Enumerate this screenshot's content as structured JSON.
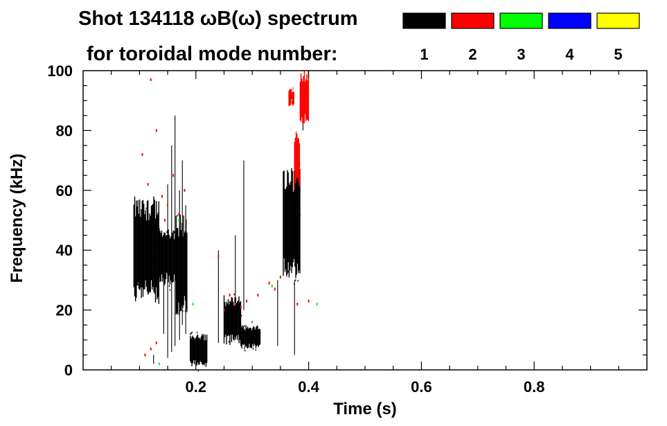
{
  "chart_data": {
    "type": "heatmap",
    "title_line1": "Shot 134118 ωB(ω) spectrum",
    "title_line2": "for toroidal mode number:",
    "xlabel": "Time (s)",
    "ylabel": "Frequency (kHz)",
    "xlim": [
      0.0,
      1.0
    ],
    "ylim": [
      0,
      100
    ],
    "x_ticks": [
      0.2,
      0.4,
      0.6,
      0.8
    ],
    "x_tick_labels": [
      "0.2",
      "0.4",
      "0.6",
      "0.8"
    ],
    "y_ticks": [
      0,
      20,
      40,
      60,
      80,
      100
    ],
    "y_tick_labels": [
      "0",
      "20",
      "40",
      "60",
      "80",
      "100"
    ],
    "legend_placement": "top-right",
    "legend": [
      {
        "label": "1",
        "color": "#000000"
      },
      {
        "label": "2",
        "color": "#ff0000"
      },
      {
        "label": "3",
        "color": "#00ff00"
      },
      {
        "label": "4",
        "color": "#0000ff"
      },
      {
        "label": "5",
        "color": "#ffff00"
      }
    ],
    "series": [
      {
        "name": "1",
        "color": "#000000",
        "regions": [
          {
            "t": [
              0.09,
              0.135
            ],
            "f": [
              22,
              58
            ]
          },
          {
            "t": [
              0.135,
              0.165
            ],
            "f": [
              28,
              48
            ]
          },
          {
            "t": [
              0.165,
              0.185
            ],
            "f": [
              18,
              52
            ]
          },
          {
            "t": [
              0.19,
              0.22
            ],
            "f": [
              1,
              12
            ]
          },
          {
            "t": [
              0.25,
              0.28
            ],
            "f": [
              8,
              25
            ]
          },
          {
            "t": [
              0.28,
              0.315
            ],
            "f": [
              7,
              15
            ]
          },
          {
            "t": [
              0.355,
              0.385
            ],
            "f": [
              30,
              68
            ]
          }
        ],
        "streaks": [
          {
            "t": 0.125,
            "f": [
              2,
              5
            ]
          },
          {
            "t": 0.143,
            "f": [
              12,
              45
            ]
          },
          {
            "t": 0.15,
            "f": [
              4,
              62
            ]
          },
          {
            "t": 0.157,
            "f": [
              6,
              75
            ]
          },
          {
            "t": 0.163,
            "f": [
              8,
              85
            ]
          },
          {
            "t": 0.171,
            "f": [
              10,
              60
            ]
          },
          {
            "t": 0.176,
            "f": [
              15,
              70
            ]
          },
          {
            "t": 0.182,
            "f": [
              12,
              55
            ]
          },
          {
            "t": 0.24,
            "f": [
              9,
              40
            ]
          },
          {
            "t": 0.27,
            "f": [
              10,
              45
            ]
          },
          {
            "t": 0.285,
            "f": [
              20,
              70
            ]
          },
          {
            "t": 0.345,
            "f": [
              8,
              30
            ]
          },
          {
            "t": 0.375,
            "f": [
              5,
              30
            ]
          },
          {
            "t": 0.39,
            "f": [
              80,
              95
            ]
          }
        ]
      },
      {
        "name": "2",
        "color": "#ff0000",
        "regions": [
          {
            "t": [
              0.375,
              0.385
            ],
            "f": [
              60,
              80
            ]
          },
          {
            "t": [
              0.385,
              0.4
            ],
            "f": [
              82,
              100
            ]
          },
          {
            "t": [
              0.365,
              0.375
            ],
            "f": [
              88,
              94
            ]
          }
        ],
        "points": [
          [
            0.12,
            97
          ],
          [
            0.13,
            80
          ],
          [
            0.105,
            72
          ],
          [
            0.115,
            62
          ],
          [
            0.14,
            58
          ],
          [
            0.15,
            55
          ],
          [
            0.17,
            52
          ],
          [
            0.18,
            60
          ],
          [
            0.145,
            50
          ],
          [
            0.16,
            65
          ],
          [
            0.11,
            5
          ],
          [
            0.13,
            9
          ],
          [
            0.12,
            7
          ],
          [
            0.24,
            38
          ],
          [
            0.25,
            20
          ],
          [
            0.27,
            22
          ],
          [
            0.29,
            23
          ],
          [
            0.31,
            25
          ],
          [
            0.33,
            29
          ],
          [
            0.35,
            31
          ],
          [
            0.38,
            22
          ],
          [
            0.4,
            23
          ],
          [
            0.26,
            25
          ],
          [
            0.28,
            21
          ],
          [
            0.34,
            27
          ]
        ]
      },
      {
        "name": "3",
        "color": "#00ff00",
        "points": [
          [
            0.135,
            2
          ],
          [
            0.17,
            50
          ],
          [
            0.195,
            22
          ],
          [
            0.335,
            28
          ],
          [
            0.415,
            22
          ],
          [
            0.37,
            90
          ]
        ]
      }
    ]
  }
}
